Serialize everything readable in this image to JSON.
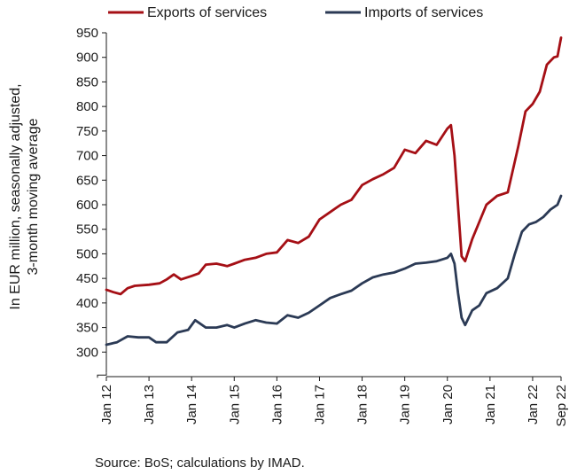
{
  "chart_data": {
    "type": "line",
    "ylabel_lines": [
      "In EUR million, seasonally adjusted,",
      "3-month moving average"
    ],
    "ylim": [
      250,
      950
    ],
    "yticks": [
      300,
      350,
      400,
      450,
      500,
      550,
      600,
      650,
      700,
      750,
      800,
      850,
      900,
      950
    ],
    "xtick_labels": [
      "Jan 12",
      "Jan 13",
      "Jan 14",
      "Jan 15",
      "Jan 16",
      "Jan 17",
      "Jan 18",
      "Jan 19",
      "Jan 20",
      "Jan 21",
      "Jan 22",
      "Sep 22"
    ],
    "legend_position": "top",
    "grid": false,
    "series": [
      {
        "name": "Exports of services",
        "color": "#a50f15",
        "points": [
          [
            "2012-01",
            427
          ],
          [
            "2012-03",
            422
          ],
          [
            "2012-05",
            418
          ],
          [
            "2012-07",
            430
          ],
          [
            "2012-09",
            435
          ],
          [
            "2013-01",
            437
          ],
          [
            "2013-04",
            440
          ],
          [
            "2013-06",
            448
          ],
          [
            "2013-08",
            458
          ],
          [
            "2013-10",
            448
          ],
          [
            "2014-01",
            455
          ],
          [
            "2014-03",
            460
          ],
          [
            "2014-05",
            478
          ],
          [
            "2014-08",
            480
          ],
          [
            "2014-11",
            475
          ],
          [
            "2015-01",
            480
          ],
          [
            "2015-04",
            488
          ],
          [
            "2015-07",
            492
          ],
          [
            "2015-10",
            500
          ],
          [
            "2016-01",
            503
          ],
          [
            "2016-04",
            528
          ],
          [
            "2016-07",
            522
          ],
          [
            "2016-10",
            535
          ],
          [
            "2017-01",
            570
          ],
          [
            "2017-04",
            585
          ],
          [
            "2017-07",
            600
          ],
          [
            "2017-10",
            610
          ],
          [
            "2018-01",
            640
          ],
          [
            "2018-04",
            652
          ],
          [
            "2018-07",
            662
          ],
          [
            "2018-10",
            675
          ],
          [
            "2019-01",
            712
          ],
          [
            "2019-04",
            705
          ],
          [
            "2019-07",
            730
          ],
          [
            "2019-10",
            722
          ],
          [
            "2020-01",
            755
          ],
          [
            "2020-02",
            762
          ],
          [
            "2020-03",
            700
          ],
          [
            "2020-05",
            495
          ],
          [
            "2020-06",
            485
          ],
          [
            "2020-08",
            530
          ],
          [
            "2020-10",
            565
          ],
          [
            "2020-12",
            600
          ],
          [
            "2021-03",
            618
          ],
          [
            "2021-06",
            625
          ],
          [
            "2021-09",
            720
          ],
          [
            "2021-11",
            790
          ],
          [
            "2022-01",
            805
          ],
          [
            "2022-03",
            830
          ],
          [
            "2022-05",
            885
          ],
          [
            "2022-07",
            900
          ],
          [
            "2022-08",
            902
          ],
          [
            "2022-09",
            940
          ]
        ]
      },
      {
        "name": "Imports of services",
        "color": "#2b3a55",
        "points": [
          [
            "2012-01",
            315
          ],
          [
            "2012-04",
            320
          ],
          [
            "2012-07",
            332
          ],
          [
            "2012-10",
            330
          ],
          [
            "2013-01",
            330
          ],
          [
            "2013-03",
            320
          ],
          [
            "2013-06",
            320
          ],
          [
            "2013-09",
            340
          ],
          [
            "2013-12",
            345
          ],
          [
            "2014-02",
            365
          ],
          [
            "2014-05",
            350
          ],
          [
            "2014-08",
            350
          ],
          [
            "2014-11",
            355
          ],
          [
            "2015-01",
            350
          ],
          [
            "2015-04",
            358
          ],
          [
            "2015-07",
            365
          ],
          [
            "2015-10",
            360
          ],
          [
            "2016-01",
            358
          ],
          [
            "2016-04",
            375
          ],
          [
            "2016-07",
            370
          ],
          [
            "2016-10",
            380
          ],
          [
            "2017-01",
            395
          ],
          [
            "2017-04",
            410
          ],
          [
            "2017-07",
            418
          ],
          [
            "2017-10",
            425
          ],
          [
            "2018-01",
            440
          ],
          [
            "2018-04",
            452
          ],
          [
            "2018-07",
            458
          ],
          [
            "2018-10",
            462
          ],
          [
            "2019-01",
            470
          ],
          [
            "2019-04",
            480
          ],
          [
            "2019-07",
            482
          ],
          [
            "2019-10",
            485
          ],
          [
            "2020-01",
            492
          ],
          [
            "2020-02",
            500
          ],
          [
            "2020-03",
            480
          ],
          [
            "2020-04",
            420
          ],
          [
            "2020-05",
            370
          ],
          [
            "2020-06",
            355
          ],
          [
            "2020-08",
            385
          ],
          [
            "2020-10",
            395
          ],
          [
            "2020-12",
            420
          ],
          [
            "2021-03",
            430
          ],
          [
            "2021-06",
            450
          ],
          [
            "2021-08",
            500
          ],
          [
            "2021-10",
            545
          ],
          [
            "2021-12",
            560
          ],
          [
            "2022-02",
            565
          ],
          [
            "2022-04",
            575
          ],
          [
            "2022-06",
            590
          ],
          [
            "2022-08",
            600
          ],
          [
            "2022-09",
            618
          ]
        ]
      }
    ]
  },
  "source_text": "Source: BoS; calculations by IMAD."
}
